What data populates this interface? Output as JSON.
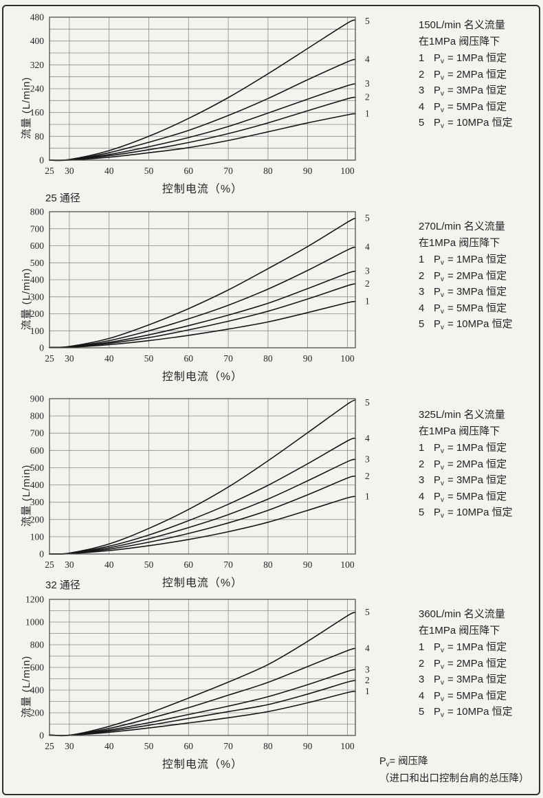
{
  "shared": {
    "pv_base": "P",
    "pv_sub": "v",
    "ink_color": "#161616",
    "grid_color": "#8a8a8a",
    "frame_color": "#4f4f4f",
    "text_color": "#262626"
  },
  "page": {
    "diameter_label_25": "25 通径",
    "diameter_label_32": "32 通径",
    "footnote_rest": "= 阀压降",
    "footnote_line2": "（进口和出口控制台肩的总压降）"
  },
  "chart_data": [
    {
      "type": "line",
      "title": "150L/min 名义流量",
      "subtitle": "在1MPa 阀压降下",
      "xlabel": "控制电流（%）",
      "ylabel": "流量 (L/min)",
      "xlim": [
        25,
        102
      ],
      "ylim": [
        0,
        480
      ],
      "x_ticks": [
        25,
        30,
        40,
        50,
        60,
        70,
        80,
        90,
        100
      ],
      "y_ticks": [
        0,
        80,
        160,
        240,
        320,
        400,
        480
      ],
      "y_grid_step": 40,
      "grid": true,
      "legend_position": "right",
      "x": [
        25,
        30,
        40,
        50,
        60,
        70,
        80,
        90,
        100,
        102
      ],
      "series": [
        {
          "name": "1",
          "pv": "1MPa",
          "values": [
            0,
            0,
            10,
            25,
            42,
            66,
            95,
            125,
            152,
            156
          ]
        },
        {
          "name": "2",
          "pv": "2MPa",
          "values": [
            0,
            1,
            15,
            35,
            59,
            89,
            125,
            166,
            206,
            211
          ]
        },
        {
          "name": "3",
          "pv": "3MPa",
          "values": [
            0,
            1,
            19,
            45,
            76,
            113,
            158,
            205,
            250,
            256
          ]
        },
        {
          "name": "4",
          "pv": "5MPa",
          "values": [
            0,
            1,
            25,
            60,
            100,
            150,
            207,
            270,
            330,
            338
          ]
        },
        {
          "name": "5",
          "pv": "10MPa",
          "values": [
            0,
            2,
            32,
            80,
            140,
            210,
            290,
            375,
            460,
            470
          ]
        }
      ],
      "legend_items": [
        {
          "num": "1",
          "rest": "= 1MPa 恒定"
        },
        {
          "num": "2",
          "rest": "= 2MPa 恒定"
        },
        {
          "num": "3",
          "rest": "= 3MPa 恒定"
        },
        {
          "num": "4",
          "rest": "= 5MPa 恒定"
        },
        {
          "num": "5",
          "rest": "= 10MPa 恒定"
        }
      ]
    },
    {
      "type": "line",
      "title": "270L/min 名义流量",
      "subtitle": "在1MPa 阀压降下",
      "xlabel": "控制电流（%）",
      "ylabel": "流量 (L/min)",
      "xlim": [
        25,
        102
      ],
      "ylim": [
        0,
        800
      ],
      "x_ticks": [
        25,
        30,
        40,
        50,
        60,
        70,
        80,
        90,
        100
      ],
      "y_ticks": [
        0,
        100,
        200,
        300,
        400,
        500,
        600,
        700,
        800
      ],
      "y_grid_step": 100,
      "grid": true,
      "legend_position": "right",
      "x": [
        25,
        30,
        40,
        50,
        60,
        70,
        80,
        90,
        100,
        102
      ],
      "series": [
        {
          "name": "1",
          "pv": "1MPa",
          "values": [
            2,
            3,
            18,
            42,
            73,
            110,
            152,
            207,
            265,
            272
          ]
        },
        {
          "name": "2",
          "pv": "2MPa",
          "values": [
            2,
            4,
            26,
            60,
            105,
            156,
            215,
            287,
            365,
            376
          ]
        },
        {
          "name": "3",
          "pv": "3MPa",
          "values": [
            2,
            5,
            32,
            76,
            130,
            192,
            262,
            348,
            438,
            450
          ]
        },
        {
          "name": "4",
          "pv": "5MPa",
          "values": [
            3,
            6,
            42,
            100,
            170,
            250,
            345,
            455,
            575,
            592
          ]
        },
        {
          "name": "5",
          "pv": "10MPa",
          "values": [
            3,
            8,
            55,
            135,
            230,
            340,
            465,
            595,
            738,
            762
          ]
        }
      ],
      "legend_items": [
        {
          "num": "1",
          "rest": "= 1MPa 恒定"
        },
        {
          "num": "2",
          "rest": "= 2MPa 恒定"
        },
        {
          "num": "3",
          "rest": "= 3MPa 恒定"
        },
        {
          "num": "4",
          "rest": "= 5MPa 恒定"
        },
        {
          "num": "5",
          "rest": "= 10MPa 恒定"
        }
      ]
    },
    {
      "type": "line",
      "title": "325L/min 名义流量",
      "subtitle": "在1MPa 阀压降下",
      "xlabel": "控制电流（%）",
      "ylabel": "流量 (L/min)",
      "xlim": [
        25,
        102
      ],
      "ylim": [
        0,
        900
      ],
      "x_ticks": [
        25,
        30,
        40,
        50,
        60,
        70,
        80,
        90,
        100
      ],
      "y_ticks": [
        0,
        100,
        200,
        300,
        400,
        500,
        600,
        700,
        800,
        900
      ],
      "y_grid_step": 100,
      "grid": true,
      "legend_position": "right",
      "x": [
        25,
        30,
        40,
        50,
        60,
        70,
        80,
        90,
        100,
        102
      ],
      "series": [
        {
          "name": "1",
          "pv": "1MPa",
          "values": [
            0,
            2,
            20,
            48,
            84,
            129,
            184,
            253,
            325,
            333
          ]
        },
        {
          "name": "2",
          "pv": "2MPa",
          "values": [
            0,
            3,
            28,
            68,
            119,
            180,
            253,
            343,
            440,
            450
          ]
        },
        {
          "name": "3",
          "pv": "3MPa",
          "values": [
            0,
            3,
            36,
            88,
            153,
            228,
            318,
            424,
            535,
            548
          ]
        },
        {
          "name": "4",
          "pv": "5MPa",
          "values": [
            0,
            4,
            45,
            110,
            193,
            288,
            398,
            523,
            655,
            670
          ]
        },
        {
          "name": "5",
          "pv": "10MPa",
          "values": [
            0,
            5,
            58,
            148,
            258,
            388,
            540,
            703,
            868,
            892
          ]
        }
      ],
      "legend_items": [
        {
          "num": "1",
          "rest": "= 1MPa 恒定"
        },
        {
          "num": "2",
          "rest": "= 2MPa 恒定"
        },
        {
          "num": "3",
          "rest": "= 3MPa 恒定"
        },
        {
          "num": "4",
          "rest": "= 5MPa 恒定"
        },
        {
          "num": "5",
          "rest": "= 10MPa 恒定"
        }
      ]
    },
    {
      "type": "line",
      "title": "360L/min 名义流量",
      "subtitle": "在1MPa 阀压降下",
      "xlabel": "控制电流（%）",
      "ylabel": "流量 (L/min)",
      "xlim": [
        25,
        102
      ],
      "ylim": [
        0,
        1200
      ],
      "x_ticks": [
        25,
        30,
        40,
        50,
        60,
        70,
        80,
        90,
        100
      ],
      "y_ticks": [
        0,
        200,
        400,
        600,
        800,
        1000,
        1200
      ],
      "y_grid_step": 100,
      "grid": true,
      "legend_position": "right",
      "x": [
        25,
        30,
        40,
        50,
        60,
        70,
        80,
        90,
        100,
        102
      ],
      "series": [
        {
          "name": "1",
          "pv": "1MPa",
          "values": [
            2,
            2,
            28,
            66,
            110,
            156,
            210,
            288,
            378,
            388
          ]
        },
        {
          "name": "2",
          "pv": "2MPa",
          "values": [
            3,
            2,
            38,
            90,
            150,
            210,
            272,
            365,
            470,
            484
          ]
        },
        {
          "name": "3",
          "pv": "3MPa",
          "values": [
            3,
            2,
            48,
            112,
            185,
            258,
            342,
            448,
            565,
            580
          ]
        },
        {
          "name": "4",
          "pv": "5MPa",
          "values": [
            5,
            2,
            62,
            148,
            245,
            355,
            468,
            608,
            748,
            768
          ]
        },
        {
          "name": "5",
          "pv": "10MPa",
          "values": [
            5,
            2,
            80,
            195,
            330,
            470,
            625,
            830,
            1055,
            1085
          ]
        }
      ],
      "legend_items": [
        {
          "num": "1",
          "rest": "= 1MPa 恒定"
        },
        {
          "num": "2",
          "rest": "= 2MPa 恒定"
        },
        {
          "num": "3",
          "rest": "= 3MPa 恒定"
        },
        {
          "num": "4",
          "rest": "= 5MPa 恒定"
        },
        {
          "num": "5",
          "rest": "= 10MPa 恒定"
        }
      ]
    }
  ]
}
